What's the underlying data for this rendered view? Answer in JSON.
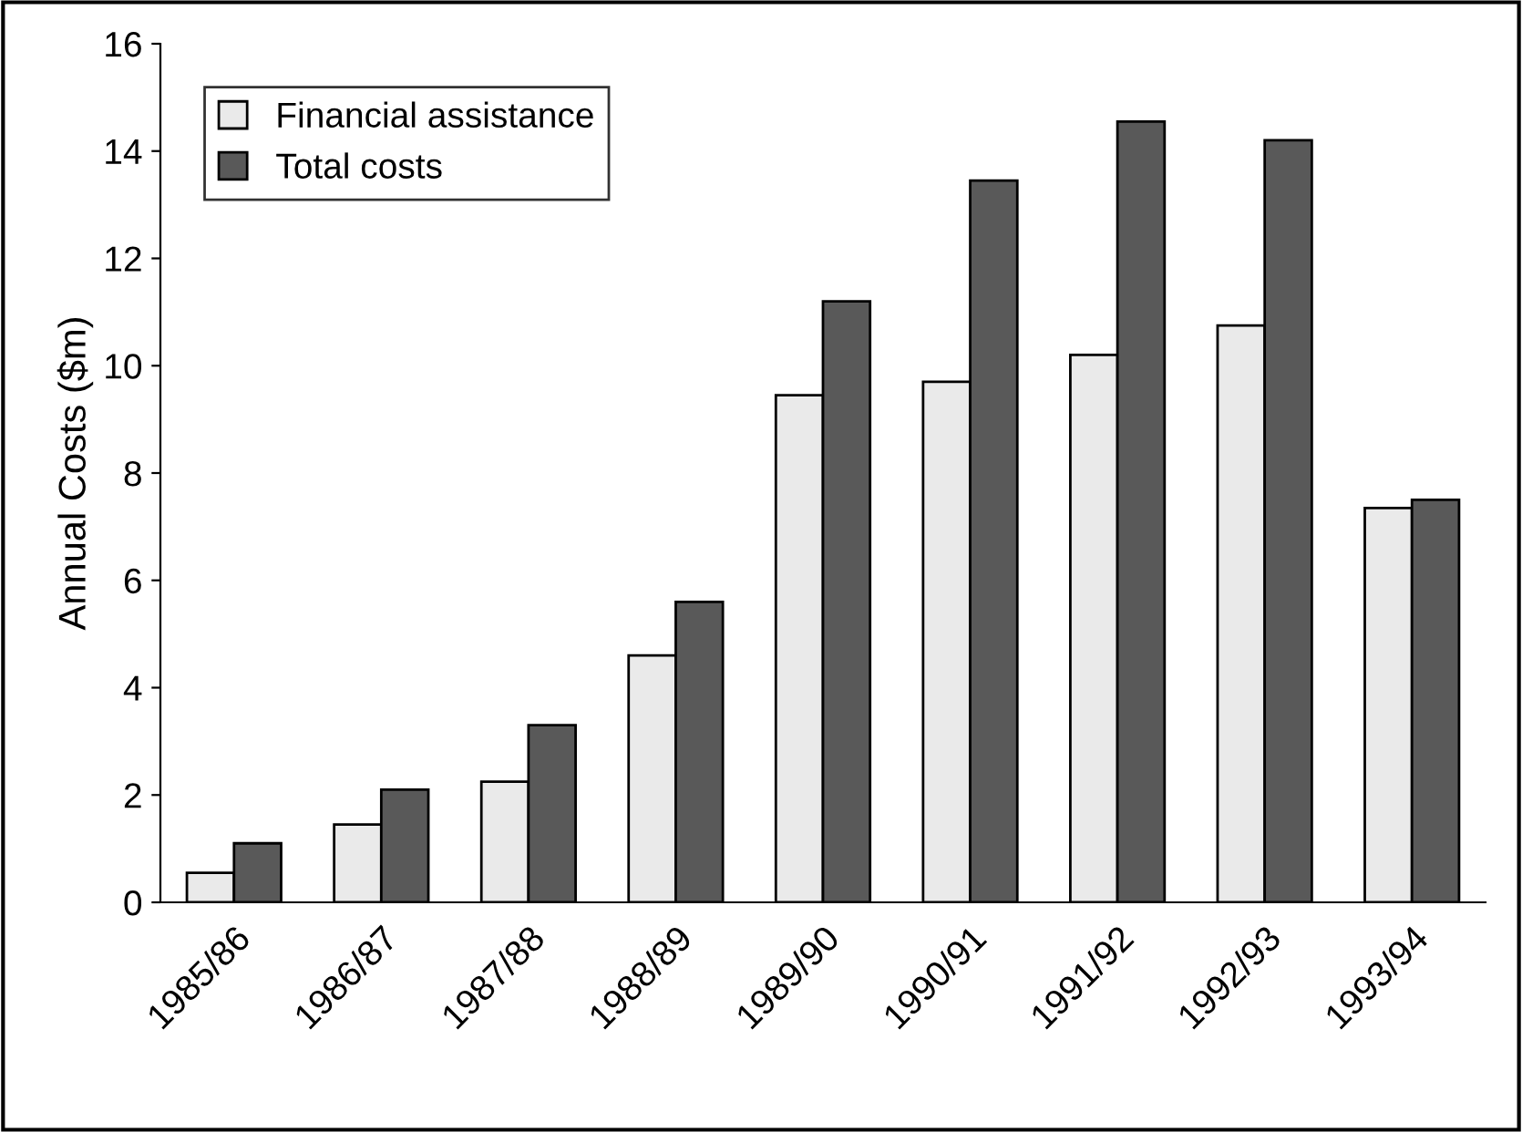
{
  "chart_data": {
    "type": "bar",
    "ylabel": "Annual Costs ($m)",
    "categories": [
      "1985/86",
      "1986/87",
      "1987/88",
      "1988/89",
      "1989/90",
      "1990/91",
      "1991/92",
      "1992/93",
      "1993/94"
    ],
    "series": [
      {
        "name": "Financial assistance",
        "color": "#eaeaea",
        "values": [
          0.55,
          1.45,
          2.25,
          4.6,
          9.45,
          9.7,
          10.2,
          10.75,
          7.35
        ]
      },
      {
        "name": "Total costs",
        "color": "#595959",
        "values": [
          1.1,
          2.1,
          3.3,
          5.6,
          11.2,
          13.45,
          14.55,
          14.2,
          7.5
        ]
      }
    ],
    "ylim": [
      0,
      16
    ],
    "yticks": [
      0,
      2,
      4,
      6,
      8,
      10,
      12,
      14,
      16
    ],
    "grid": false,
    "legend": "top left"
  }
}
